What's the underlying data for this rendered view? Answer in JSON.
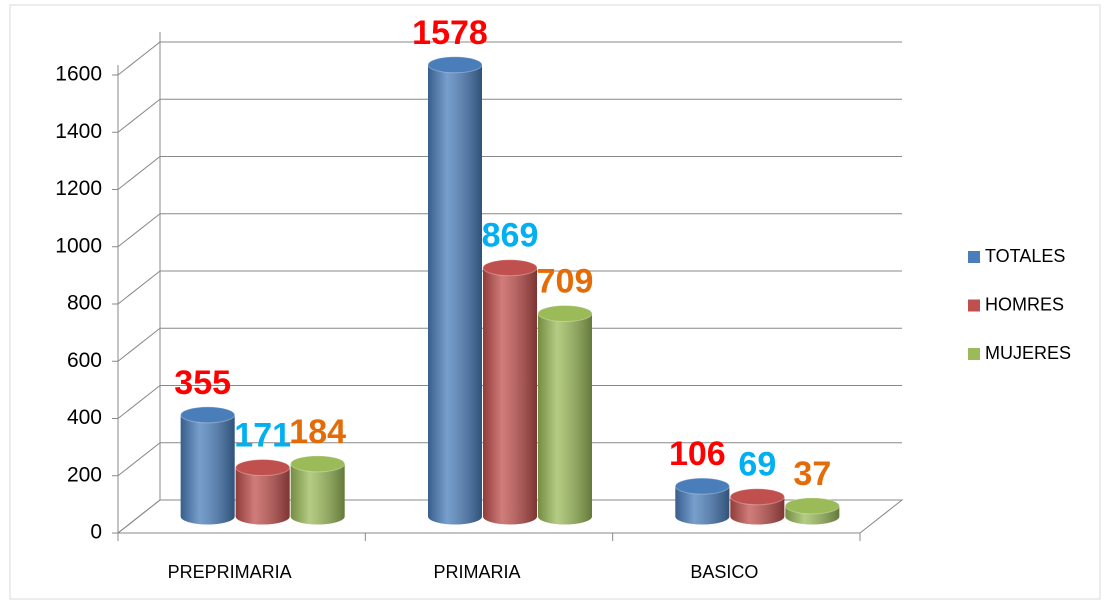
{
  "chart_data": {
    "type": "bar3d",
    "categories": [
      "PREPRIMARIA",
      "PRIMARIA",
      "BASICO"
    ],
    "series": [
      {
        "name": "TOTALES",
        "color": "#4a7ebb",
        "label_color": "#ff0000",
        "values": [
          355,
          1578,
          106
        ]
      },
      {
        "name": "HOMRES",
        "color": "#c0504d",
        "label_color": "#00b0f0",
        "values": [
          171,
          869,
          69
        ]
      },
      {
        "name": "MUJERES",
        "color": "#9bbb59",
        "label_color": "#e36c09",
        "values": [
          184,
          709,
          37
        ]
      }
    ],
    "ylim": [
      0,
      1600
    ],
    "yticks": [
      0,
      200,
      400,
      600,
      800,
      1000,
      1200,
      1400,
      1600
    ],
    "grid": true,
    "legend": "right"
  }
}
